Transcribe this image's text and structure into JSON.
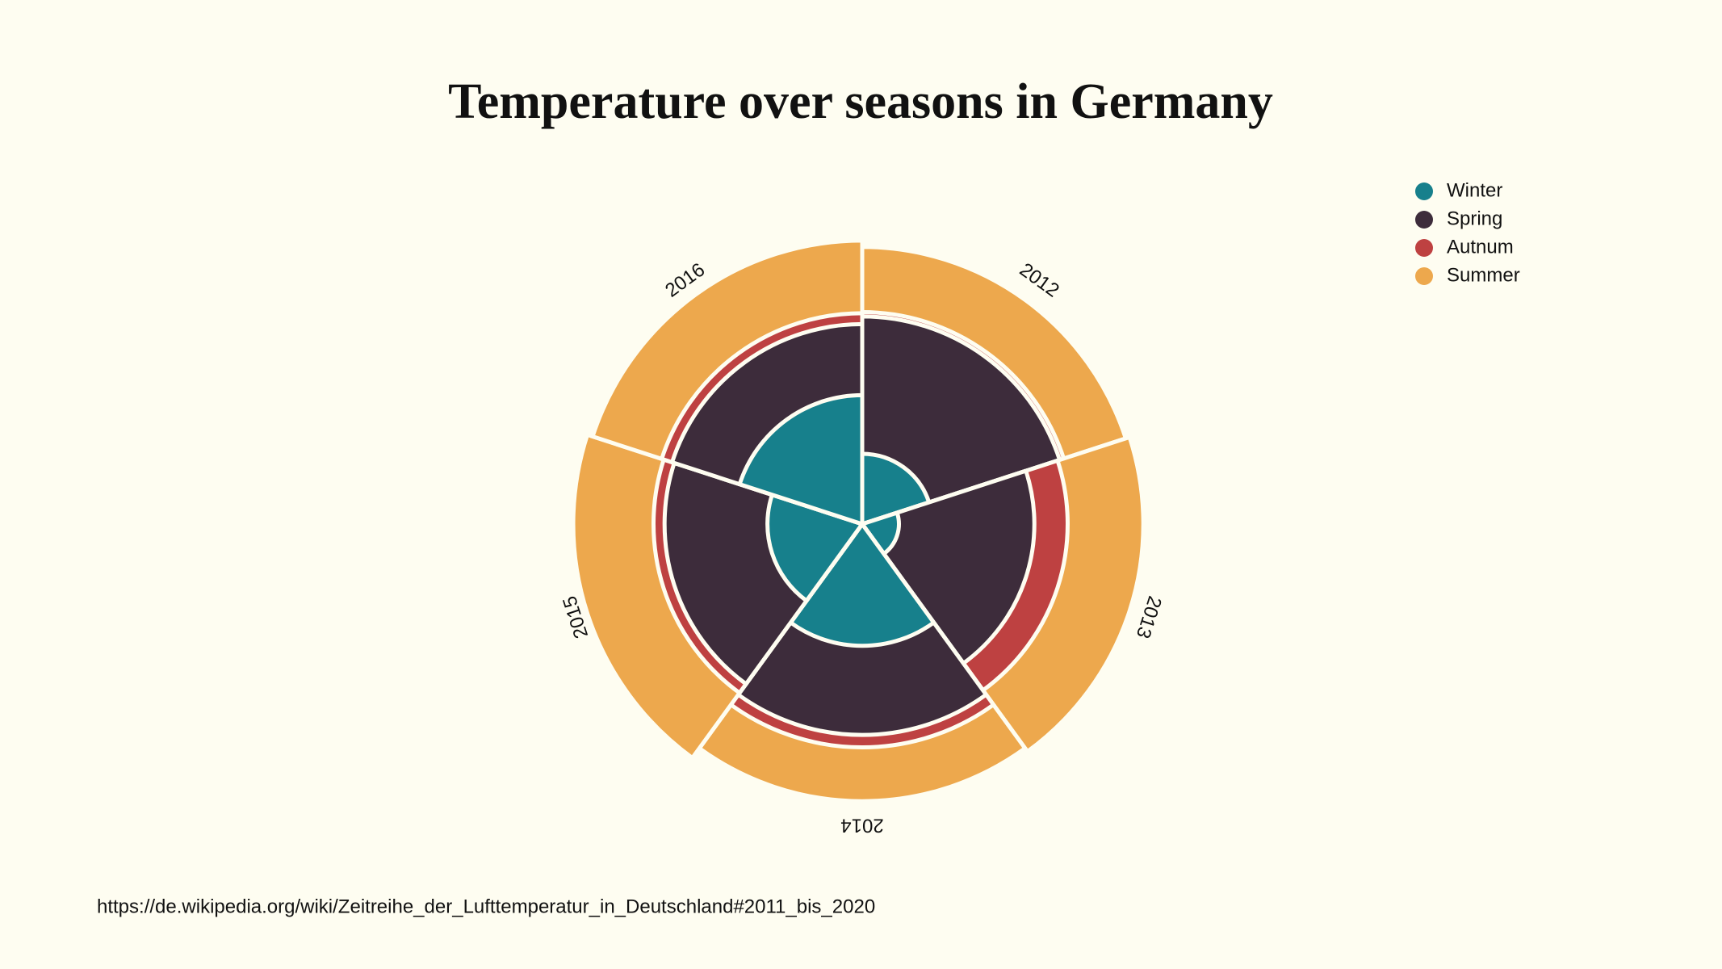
{
  "chart_data": {
    "type": "polar",
    "title": "Temperature over seasons in Germany",
    "categories": [
      "2012",
      "2013",
      "2014",
      "2015",
      "2016"
    ],
    "series": [
      {
        "name": "Winter",
        "color": "#17808c",
        "values": [
          1.1,
          0.3,
          3.3,
          2.0,
          3.7
        ]
      },
      {
        "name": "Spring",
        "color": "#3d2c3b",
        "values": [
          9.6,
          6.6,
          9.9,
          8.7,
          8.9
        ]
      },
      {
        "name": "Autnum",
        "color": "#be4141",
        "values": [
          10.0,
          9.4,
          11.1,
          9.7,
          9.9
        ]
      },
      {
        "name": "Summer",
        "color": "#eda84d",
        "values": [
          17.1,
          17.6,
          17.1,
          18.6,
          17.9
        ]
      }
    ],
    "legend": "top-right",
    "source": "https://de.wikipedia.org/wiki/Zeitreihe_der_Lufttemperatur_in_Deutschland#2011_bis_2020"
  }
}
